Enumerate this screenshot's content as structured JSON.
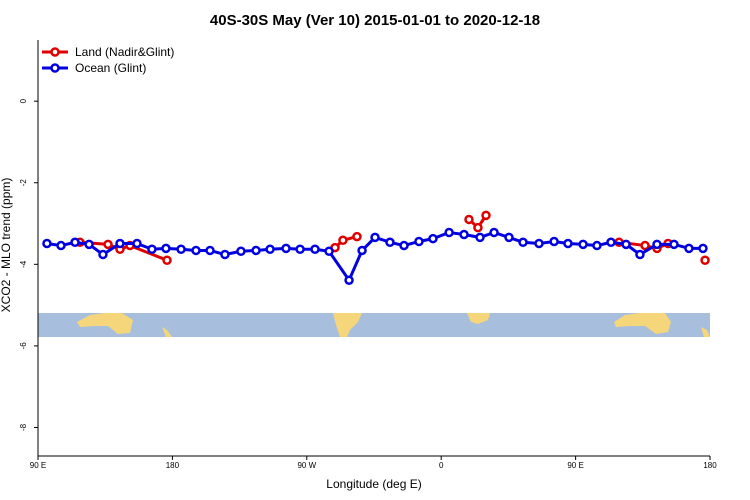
{
  "chart_data": {
    "type": "line",
    "title": "40S-30S May (Ver 10)   2015-01-01 to 2020-12-18",
    "x_label": "Longitude (deg E)",
    "y_label": "XCO2 - MLO trend (ppm)",
    "xlim": [
      90,
      540
    ],
    "xticks": [
      {
        "value": 90,
        "label": "90 E"
      },
      {
        "value": 180,
        "label": "180"
      },
      {
        "value": 270,
        "label": "90 W"
      },
      {
        "value": 360,
        "label": "0"
      },
      {
        "value": 450,
        "label": "90 E"
      },
      {
        "value": 540,
        "label": "180"
      }
    ],
    "ylim": [
      -8.7,
      1.5
    ],
    "yticks": [
      0,
      -2,
      -4,
      -6,
      -8
    ],
    "legend": "top-left",
    "series": [
      {
        "name": "Land (Nadir&Glint)",
        "color": "#e00000",
        "x": [
          118.1,
          136.9,
          144.9,
          151.6,
          176.4,
          null,
          288.9,
          294.2,
          303.6,
          null,
          378.6,
          384.6,
          390.0,
          null,
          479.1,
          496.5,
          504.5,
          511.9,
          null,
          536.7
        ],
        "values": [
          -3.46,
          -3.51,
          -3.63,
          -3.54,
          -3.9,
          null,
          -3.59,
          -3.41,
          -3.32,
          null,
          -2.9,
          -3.1,
          -2.8,
          null,
          -3.46,
          -3.54,
          -3.61,
          -3.49,
          null,
          -3.9
        ]
      },
      {
        "name": "Ocean (Glint)",
        "color": "#0000e0",
        "x": [
          96.0,
          105.4,
          114.8,
          124.2,
          133.5,
          144.9,
          156.3,
          166.3,
          175.7,
          185.8,
          195.8,
          205.2,
          215.2,
          225.9,
          236.0,
          245.4,
          256.1,
          265.5,
          275.5,
          284.9,
          298.3,
          307.0,
          315.7,
          325.7,
          335.1,
          345.1,
          354.5,
          365.3,
          375.3,
          386.0,
          395.4,
          405.4,
          414.8,
          425.5,
          435.6,
          444.9,
          455.0,
          464.3,
          473.7,
          483.8,
          493.1,
          504.5,
          515.9,
          525.9,
          535.3
        ],
        "values": [
          -3.49,
          -3.54,
          -3.46,
          -3.51,
          -3.76,
          -3.49,
          -3.49,
          -3.63,
          -3.61,
          -3.63,
          -3.66,
          -3.66,
          -3.76,
          -3.68,
          -3.66,
          -3.63,
          -3.61,
          -3.63,
          -3.63,
          -3.68,
          -4.39,
          -3.66,
          -3.34,
          -3.46,
          -3.54,
          -3.44,
          -3.37,
          -3.22,
          -3.27,
          -3.34,
          -3.22,
          -3.34,
          -3.46,
          -3.49,
          -3.44,
          -3.49,
          -3.51,
          -3.54,
          -3.46,
          -3.51,
          -3.76,
          -3.51,
          -3.51,
          -3.61,
          -3.61
        ]
      }
    ]
  }
}
